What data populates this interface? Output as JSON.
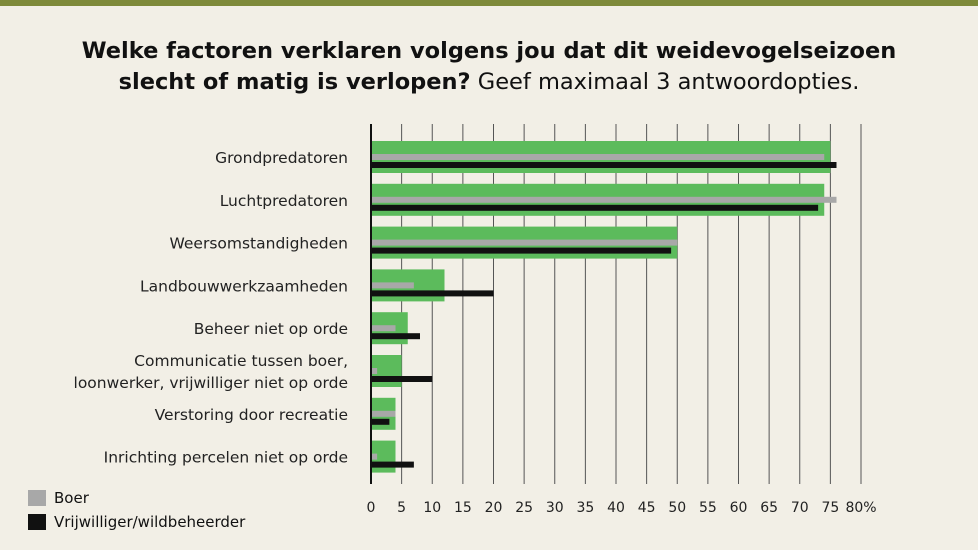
{
  "title_bold": "Welke factoren verklaren volgens jou dat dit weidevogelseizoen slecht of matig is verlopen?",
  "title_normal": "Geef maximaal 3 antwoordopties.",
  "chart_data": {
    "type": "bar",
    "orientation": "horizontal",
    "categories": [
      [
        "Grondpredatoren"
      ],
      [
        "Luchtpredatoren"
      ],
      [
        "Weersomstandigheden"
      ],
      [
        "Landbouwwerkzaamheden"
      ],
      [
        "Beheer niet op orde"
      ],
      [
        "Communicatie tussen boer,",
        "loonwerker, vrijwilliger niet op orde"
      ],
      [
        "Verstoring door recreatie"
      ],
      [
        "Inrichting percelen niet op orde"
      ]
    ],
    "series": [
      {
        "values": [
          75,
          74,
          50,
          12,
          6,
          5,
          4,
          4
        ],
        "color": "#5cbb5c"
      },
      {
        "name": "Boer",
        "values": [
          74,
          76,
          50,
          7,
          4,
          1,
          4,
          1
        ],
        "color": "#a8a8a8"
      },
      {
        "name": "Vrijwilliger/wildbeheerder",
        "values": [
          76,
          73,
          49,
          20,
          8,
          10,
          3,
          7
        ],
        "color": "#111111"
      }
    ],
    "xlim": [
      0,
      80
    ],
    "xticks": [
      "0",
      "5",
      "10",
      "15",
      "20",
      "25",
      "30",
      "35",
      "40",
      "45",
      "50",
      "55",
      "60",
      "65",
      "70",
      "75",
      "80%"
    ],
    "grid": true,
    "legend_position": "bottom-left"
  }
}
